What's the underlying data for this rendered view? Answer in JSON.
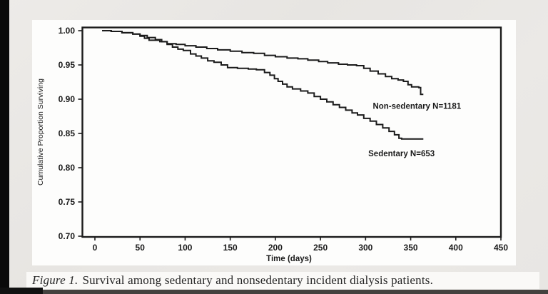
{
  "page": {
    "background": "#e8e6e3",
    "left_bar_color": "#0a0a0a",
    "bottom_bar_color": "#44423f"
  },
  "figure": {
    "panel_bg": "#fdfdfc",
    "caption": {
      "label": "Figure 1.",
      "text": "Survival among sedentary and nonsedentary incident dialysis patients."
    }
  },
  "chart_data": {
    "type": "line",
    "subtype": "kaplan-meier-step",
    "title": "",
    "xlabel": "Time (days)",
    "ylabel": "Cumulative Proportion Surviving",
    "xlim": [
      0,
      450
    ],
    "xticks": [
      0,
      50,
      100,
      150,
      200,
      250,
      300,
      350,
      400,
      450
    ],
    "ylim": [
      0.7,
      1.0
    ],
    "yticks": [
      1.0,
      0.95,
      0.9,
      0.85,
      0.8,
      0.75,
      0.7
    ],
    "grid": false,
    "legend_position": "inline-annotations",
    "line_color": "#1b1b1b",
    "frame_color": "#1b1b1b",
    "series": [
      {
        "id": "non-sedentary-curve",
        "name": "Non-sedentary",
        "n": 1181,
        "annotation": "Non-sedentary N=1181",
        "annotation_pos": {
          "t": 308,
          "v": 0.89
        },
        "points": [
          [
            8,
            1.0
          ],
          [
            18,
            0.999
          ],
          [
            30,
            0.997
          ],
          [
            42,
            0.995
          ],
          [
            50,
            0.993
          ],
          [
            58,
            0.99
          ],
          [
            67,
            0.987
          ],
          [
            74,
            0.984
          ],
          [
            80,
            0.981
          ],
          [
            90,
            0.98
          ],
          [
            100,
            0.978
          ],
          [
            112,
            0.976
          ],
          [
            124,
            0.974
          ],
          [
            136,
            0.972
          ],
          [
            150,
            0.97
          ],
          [
            163,
            0.968
          ],
          [
            176,
            0.967
          ],
          [
            188,
            0.964
          ],
          [
            200,
            0.962
          ],
          [
            213,
            0.96
          ],
          [
            225,
            0.959
          ],
          [
            236,
            0.957
          ],
          [
            248,
            0.955
          ],
          [
            258,
            0.953
          ],
          [
            270,
            0.951
          ],
          [
            280,
            0.95
          ],
          [
            290,
            0.949
          ],
          [
            298,
            0.945
          ],
          [
            305,
            0.941
          ],
          [
            314,
            0.937
          ],
          [
            322,
            0.933
          ],
          [
            329,
            0.93
          ],
          [
            336,
            0.928
          ],
          [
            342,
            0.926
          ],
          [
            347,
            0.921
          ],
          [
            351,
            0.918
          ],
          [
            359,
            0.917
          ],
          [
            361,
            0.907
          ],
          [
            364,
            0.907
          ]
        ]
      },
      {
        "id": "sedentary-curve",
        "name": "Sedentary",
        "n": 653,
        "annotation": "Sedentary N=653",
        "annotation_pos": {
          "t": 303,
          "v": 0.821
        },
        "points": [
          [
            8,
            1.0
          ],
          [
            18,
            0.999
          ],
          [
            30,
            0.997
          ],
          [
            42,
            0.995
          ],
          [
            50,
            0.992
          ],
          [
            55,
            0.989
          ],
          [
            60,
            0.986
          ],
          [
            72,
            0.984
          ],
          [
            80,
            0.98
          ],
          [
            86,
            0.976
          ],
          [
            92,
            0.973
          ],
          [
            98,
            0.971
          ],
          [
            106,
            0.966
          ],
          [
            112,
            0.963
          ],
          [
            118,
            0.96
          ],
          [
            125,
            0.956
          ],
          [
            132,
            0.954
          ],
          [
            140,
            0.95
          ],
          [
            147,
            0.946
          ],
          [
            158,
            0.945
          ],
          [
            170,
            0.944
          ],
          [
            179,
            0.943
          ],
          [
            188,
            0.939
          ],
          [
            194,
            0.935
          ],
          [
            199,
            0.93
          ],
          [
            203,
            0.926
          ],
          [
            208,
            0.922
          ],
          [
            213,
            0.918
          ],
          [
            219,
            0.915
          ],
          [
            228,
            0.912
          ],
          [
            236,
            0.909
          ],
          [
            243,
            0.904
          ],
          [
            250,
            0.9
          ],
          [
            257,
            0.896
          ],
          [
            264,
            0.892
          ],
          [
            271,
            0.888
          ],
          [
            278,
            0.884
          ],
          [
            285,
            0.88
          ],
          [
            291,
            0.877
          ],
          [
            298,
            0.872
          ],
          [
            305,
            0.868
          ],
          [
            312,
            0.863
          ],
          [
            319,
            0.858
          ],
          [
            326,
            0.853
          ],
          [
            332,
            0.848
          ],
          [
            337,
            0.843
          ],
          [
            340,
            0.842
          ],
          [
            364,
            0.842
          ]
        ]
      }
    ]
  }
}
